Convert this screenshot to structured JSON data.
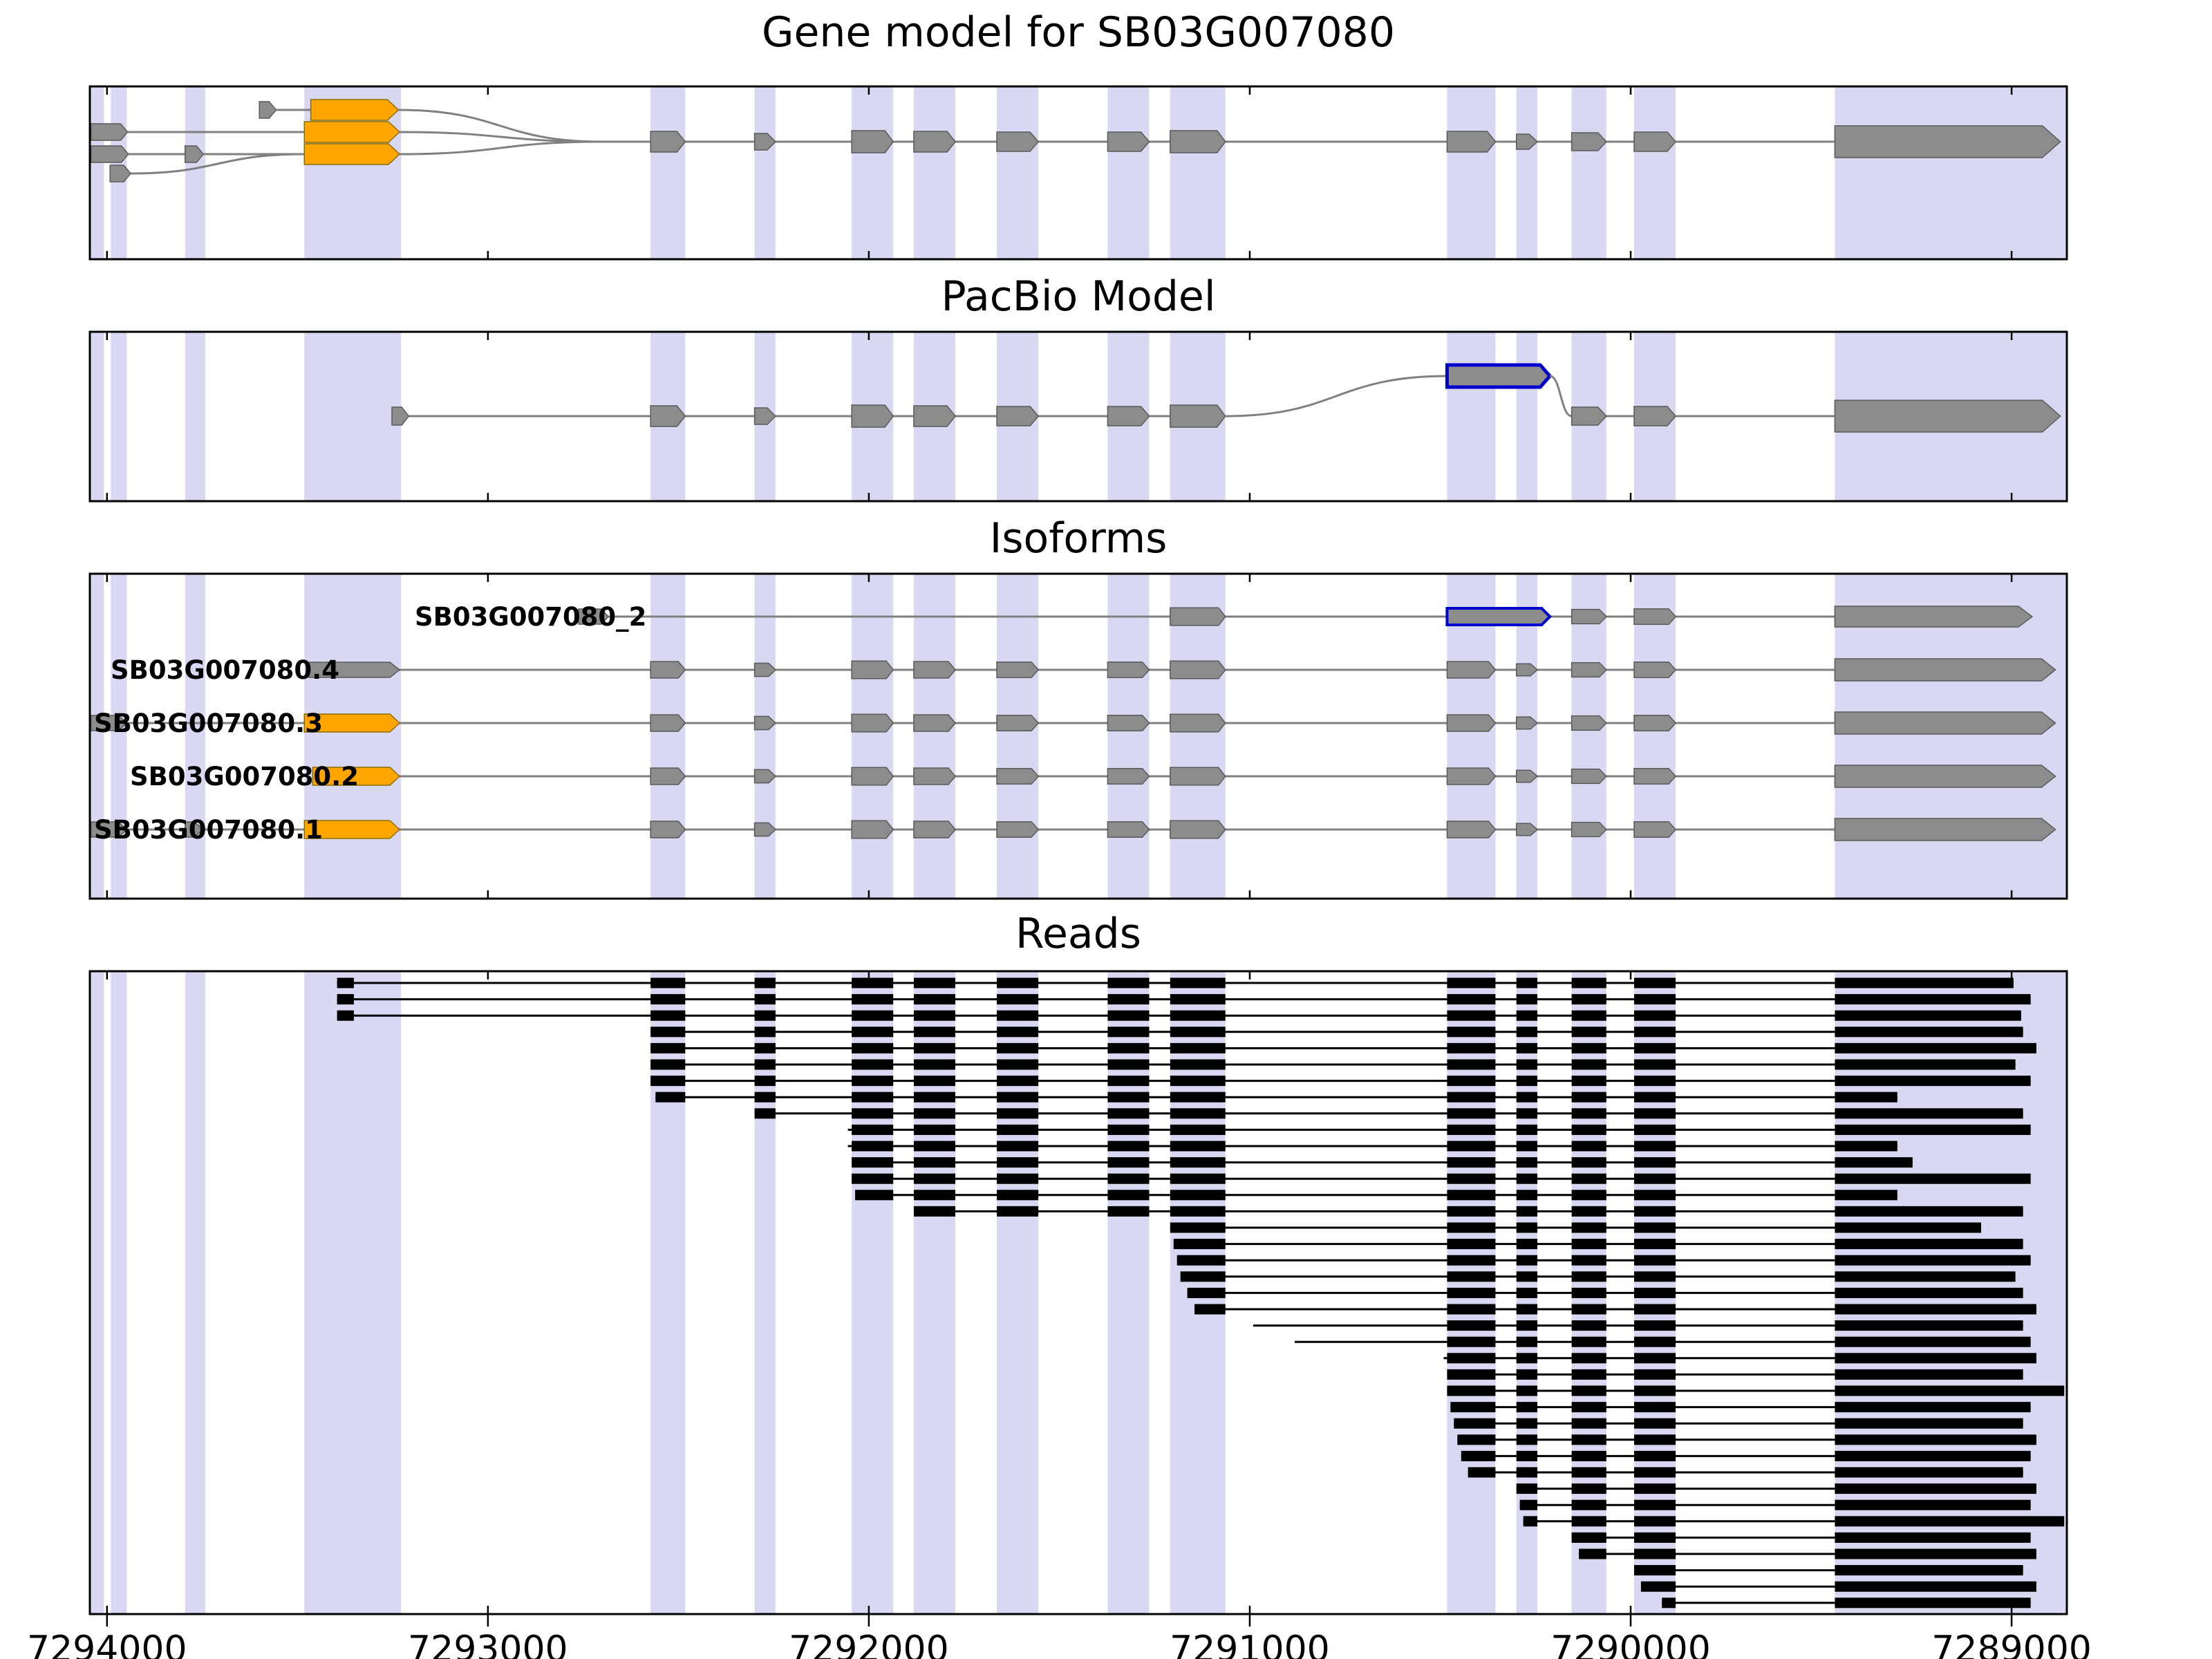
{
  "titles": {
    "gene_model": "Gene model for SB03G007080",
    "pacbio": "PacBio Model",
    "isoforms": "Isoforms",
    "reads": "Reads"
  },
  "axis": {
    "ticks": [
      7294000,
      7293000,
      7292000,
      7291000,
      7290000,
      7289000
    ],
    "xlim": [
      7294045,
      7288855
    ]
  },
  "colors": {
    "band": "#d8d8f2",
    "gray": "#8c8c8c",
    "gray_edge": "#5a5a5a",
    "orange": "#FFA500",
    "orange_edge": "#8a6d00",
    "blue": "#0000cc",
    "line": "#808080",
    "read": "#000000"
  },
  "chart_data": {
    "type": "genome-browser",
    "title": "Gene model for SB03G007080",
    "xlim": [
      7294045,
      7288855
    ],
    "x_ticks": [
      7294000,
      7293000,
      7292000,
      7291000,
      7290000,
      7289000
    ],
    "bands": [
      [
        7294042,
        7294008
      ],
      [
        7293990,
        7293948
      ],
      [
        7293795,
        7293742
      ],
      [
        7293482,
        7293228
      ],
      [
        7292573,
        7292482
      ],
      [
        7292300,
        7292245
      ],
      [
        7292045,
        7291936
      ],
      [
        7291882,
        7291773
      ],
      [
        7291664,
        7291555
      ],
      [
        7291373,
        7291264
      ],
      [
        7291209,
        7291064
      ],
      [
        7290482,
        7290355
      ],
      [
        7290300,
        7290245
      ],
      [
        7290155,
        7290064
      ],
      [
        7289991,
        7289882
      ],
      [
        7289464,
        7288858
      ]
    ],
    "shared_exon_chain": [
      {
        "span": [
          7292573,
          7292482
        ],
        "h": 30
      },
      {
        "span": [
          7292300,
          7292245
        ],
        "h": 24
      },
      {
        "span": [
          7292045,
          7291936
        ],
        "h": 32
      },
      {
        "span": [
          7291882,
          7291773
        ],
        "h": 30
      },
      {
        "span": [
          7291664,
          7291555
        ],
        "h": 28
      },
      {
        "span": [
          7291373,
          7291264
        ],
        "h": 28
      },
      {
        "span": [
          7291209,
          7291064
        ],
        "h": 32
      },
      {
        "span": [
          7290482,
          7290355
        ],
        "h": 30
      },
      {
        "span": [
          7290300,
          7290245
        ],
        "h": 22
      },
      {
        "span": [
          7290155,
          7290064
        ],
        "h": 26
      },
      {
        "span": [
          7289991,
          7289882
        ],
        "h": 28
      }
    ],
    "last_exon_big": {
      "span": [
        7289464,
        7288872
      ],
      "h": 46
    },
    "gene_model": {
      "starts": [
        {
          "row": 0,
          "exons": [
            [
              7293600,
              7293556
            ]
          ]
        },
        {
          "row": 1,
          "exons": [
            [
              7294042,
              7293946
            ]
          ]
        },
        {
          "row": 2,
          "exons": [
            [
              7294042,
              7293944
            ],
            [
              7293795,
              7293747
            ]
          ]
        },
        {
          "row": 3,
          "exons": [
            [
              7293992,
              7293938
            ]
          ]
        }
      ],
      "orange_first_exons": [
        [
          7293465,
          7293235
        ],
        [
          7293482,
          7293232
        ],
        [
          7293482,
          7293232
        ]
      ],
      "merge_pos": 7292700
    },
    "pacbio": {
      "first_exon": [
        7293252,
        7293208
      ],
      "chain_until_index": 6,
      "blue_exon": [
        7290482,
        7290212
      ],
      "post_exon_indices": [
        9,
        10
      ]
    },
    "isoforms": [
      {
        "label": "SB03G007080_2",
        "custom": true,
        "first_exon": [
          7292762,
          7292684
        ],
        "mid_index": 6,
        "blue_exon": [
          7290482,
          7290212
        ],
        "post_indices": [
          9,
          10
        ],
        "last": [
          7289464,
          7288946
        ]
      },
      {
        "label": "SB03G007080.4",
        "five_prime": [
          {
            "span": [
              7293470,
              7293232
            ],
            "color": "gray"
          }
        ],
        "last": [
          7289464,
          7288885
        ]
      },
      {
        "label": "SB03G007080.3",
        "five_prime": [
          {
            "span": [
              7294042,
              7293946
            ],
            "color": "gray"
          },
          {
            "span": [
              7293482,
              7293232
            ],
            "color": "orange"
          }
        ],
        "last": [
          7289464,
          7288885
        ]
      },
      {
        "label": "SB03G007080.2",
        "five_prime": [
          {
            "span": [
              7293460,
              7293232
            ],
            "color": "orange"
          }
        ],
        "last": [
          7289464,
          7288885
        ]
      },
      {
        "label": "SB03G007080.1",
        "five_prime": [
          {
            "span": [
              7294042,
              7293946
            ],
            "color": "gray"
          },
          {
            "span": [
              7293795,
              7293747
            ],
            "color": "gray"
          },
          {
            "span": [
              7293482,
              7293232
            ],
            "color": "orange"
          }
        ],
        "last": [
          7289464,
          7288885
        ]
      }
    ],
    "reads": {
      "spans": [
        [
          7293396,
          7288995
        ],
        [
          7293396,
          7288950
        ],
        [
          7293396,
          7288975
        ],
        [
          7292573,
          7288970
        ],
        [
          7292573,
          7288935
        ],
        [
          7292573,
          7288990
        ],
        [
          7292573,
          7288950
        ],
        [
          7292560,
          7289300
        ],
        [
          7292300,
          7288970
        ],
        [
          7292055,
          7288950
        ],
        [
          7292055,
          7289300
        ],
        [
          7292045,
          7289260
        ],
        [
          7292045,
          7288950
        ],
        [
          7292036,
          7289300
        ],
        [
          7291882,
          7288970
        ],
        [
          7291209,
          7289080
        ],
        [
          7291200,
          7288970
        ],
        [
          7291191,
          7288950
        ],
        [
          7291182,
          7288990
        ],
        [
          7291164,
          7288970
        ],
        [
          7291145,
          7288935
        ],
        [
          7290991,
          7288970
        ],
        [
          7290882,
          7288950
        ],
        [
          7290491,
          7288935
        ],
        [
          7290482,
          7288970
        ],
        [
          7290482,
          7288862
        ],
        [
          7290473,
          7288950
        ],
        [
          7290464,
          7288970
        ],
        [
          7290455,
          7288935
        ],
        [
          7290445,
          7288950
        ],
        [
          7290427,
          7288970
        ],
        [
          7290300,
          7288935
        ],
        [
          7290291,
          7288950
        ],
        [
          7290282,
          7288862
        ],
        [
          7290155,
          7288950
        ],
        [
          7290136,
          7288935
        ],
        [
          7289991,
          7288970
        ],
        [
          7289973,
          7288935
        ],
        [
          7289918,
          7288950
        ]
      ],
      "first_block_override": {
        "indices": [
          0,
          1,
          2
        ],
        "block": [
          7293396,
          7293352
        ]
      },
      "block_bands": [
        [
          7292573,
          7292482
        ],
        [
          7292300,
          7292245
        ],
        [
          7292045,
          7291936
        ],
        [
          7291882,
          7291773
        ],
        [
          7291664,
          7291555
        ],
        [
          7291373,
          7291264
        ],
        [
          7291209,
          7291064
        ],
        [
          7290482,
          7290355
        ],
        [
          7290300,
          7290245
        ],
        [
          7290155,
          7290064
        ],
        [
          7289991,
          7289882
        ],
        [
          7289464,
          7288858
        ]
      ]
    }
  }
}
